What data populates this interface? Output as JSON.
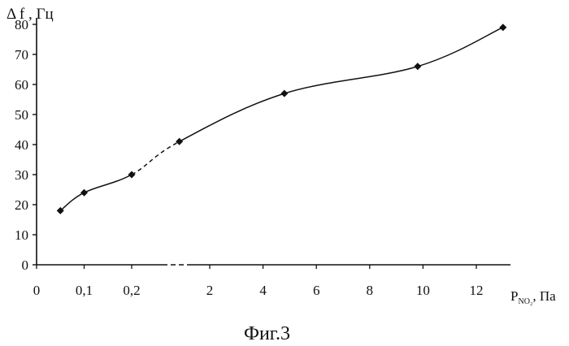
{
  "chart_data": {
    "type": "line",
    "ylabel": "Δ f , Гц",
    "xlabel_main": "P",
    "xlabel_sub": "NO₂",
    "xlabel_unit": ", Па",
    "caption": "Фиг.3",
    "ylim": [
      0,
      80
    ],
    "y_ticks": [
      "0",
      "10",
      "20",
      "30",
      "40",
      "50",
      "60",
      "70",
      "80"
    ],
    "x_tick_labels": [
      "0",
      "0,1",
      "0,2",
      "2",
      "4",
      "6",
      "8",
      "10",
      "12"
    ],
    "x_scale_note": "piecewise (0–0,2 and 2–12 segments)",
    "series": [
      {
        "points": [
          {
            "x": 0.05,
            "y": 18
          },
          {
            "x": 0.1,
            "y": 24
          },
          {
            "x": 0.2,
            "y": 30
          },
          {
            "x": 1.3,
            "y": 41
          },
          {
            "x": 4.8,
            "y": 57
          },
          {
            "x": 9.8,
            "y": 66
          },
          {
            "x": 13.0,
            "y": 79
          }
        ],
        "dashed_segment": [
          2,
          3
        ]
      }
    ],
    "grid": false,
    "marker": "diamond",
    "color": "#111111"
  }
}
